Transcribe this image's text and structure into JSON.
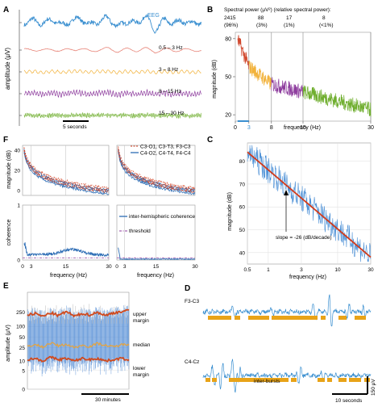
{
  "colors": {
    "eeg": "#3a8fd0",
    "delta": "#e8867a",
    "theta": "#f2b23a",
    "alpha": "#8e3d9e",
    "beta": "#6fae2e",
    "dark": "#333333",
    "red_fit": "#d23a1a",
    "threshold": "#8e3d9e",
    "margin": "#d04a1e",
    "median": "#e8a33a",
    "burst_bar": "#e8a318",
    "grey_line": "#aaaaaa"
  },
  "chart_data": [
    {
      "panel": "A",
      "type": "line",
      "ylabel": "amplitude (μV)",
      "series": [
        {
          "name": "EEG",
          "values": [
            0,
            6,
            -4,
            10,
            -8,
            4,
            12,
            -6,
            2,
            14,
            -12,
            5,
            -3,
            20,
            -25,
            8,
            -2,
            5,
            -3,
            2
          ]
        },
        {
          "name": "0.5 – 3 Hz",
          "values": [
            0,
            4,
            -3,
            5,
            -4,
            3,
            6,
            -5,
            2,
            7,
            -6,
            4,
            -2,
            8,
            -9,
            5,
            -3,
            3,
            -2,
            1
          ]
        },
        {
          "name": "3 – 8 Hz",
          "values": [
            0,
            2,
            -3,
            3,
            -2,
            2,
            3,
            -2,
            2,
            3,
            -3,
            2,
            -2,
            3,
            -3,
            2,
            -2,
            2,
            -2,
            1
          ]
        },
        {
          "name": "8 – 15 Hz",
          "values": [
            0,
            2,
            -2,
            3,
            -3,
            2,
            3,
            -3,
            2,
            3,
            -3,
            2,
            -2,
            3,
            -3,
            2,
            -2,
            2,
            -2,
            1
          ]
        },
        {
          "name": "15 – 30 Hz",
          "values": [
            0,
            1,
            -1,
            1,
            -1,
            1,
            1,
            -1,
            1,
            1,
            -1,
            1,
            -1,
            1,
            -1,
            1,
            -1,
            1,
            -1,
            1
          ]
        }
      ],
      "scale_bar_label": "5 seconds"
    },
    {
      "panel": "B",
      "type": "line",
      "title": "Spectral power (μV²) (relative spectral power):",
      "annotations": [
        {
          "power": "2415",
          "relative": "(96%)"
        },
        {
          "power": "88",
          "relative": "(3%)"
        },
        {
          "power": "17",
          "relative": "(1%)"
        },
        {
          "power": "8",
          "relative": "(<1%)"
        }
      ],
      "xlabel": "frequency (Hz)",
      "ylabel": "magnitude (dB)",
      "xticks": [
        0,
        3,
        8,
        15,
        30
      ],
      "yticks": [
        20,
        50,
        80
      ],
      "xlim": [
        0,
        30
      ],
      "ylim": [
        15,
        85
      ],
      "bands": [
        {
          "range": [
            0.5,
            3
          ],
          "level_start": 80,
          "level_end": 58
        },
        {
          "range": [
            3,
            8
          ],
          "level_start": 58,
          "level_end": 44
        },
        {
          "range": [
            8,
            15
          ],
          "level_start": 44,
          "level_end": 38
        },
        {
          "range": [
            15,
            30
          ],
          "level_start": 38,
          "level_end": 24
        }
      ]
    },
    {
      "panel": "C",
      "type": "line",
      "xlabel": "frequency (Hz)",
      "ylabel": "magnitude (dB)",
      "xscale": "log",
      "xticks": [
        "0.5",
        "1",
        "3",
        "10",
        "30"
      ],
      "yticks": [
        40,
        50,
        60,
        70,
        80
      ],
      "xlim": [
        0.5,
        30
      ],
      "ylim": [
        35,
        88
      ],
      "fit_line": {
        "x": [
          0.5,
          30
        ],
        "y": [
          84,
          38
        ]
      },
      "annotation": "slope = -26 (dB/decade)"
    },
    {
      "panel": "F",
      "type": "line",
      "top_ylabel": "magnitude (dB)",
      "bottom_ylabel": "coherence",
      "xlabel": "frequency (Hz)",
      "top_yticks": [
        0,
        20,
        40
      ],
      "bottom_yticks": [
        0,
        1
      ],
      "xticks": [
        0,
        3,
        15,
        30
      ],
      "top_legend": [
        "C3-O1, C3-T3, F3-C3",
        "C4-O2, C4-T4, F4-C4"
      ],
      "bottom_legend": [
        "inter-hemispheric coherence",
        "threshold"
      ],
      "threshold": 0.04
    },
    {
      "panel": "E",
      "type": "area",
      "ylabel": "amplitude (μV)",
      "yscale": "log",
      "yticks": [
        0,
        5,
        10,
        25,
        50,
        100,
        250
      ],
      "labels": [
        "upper margin",
        "median",
        "lower margin"
      ],
      "scale_bar_label": "30 minutes",
      "upper_margin": [
        210,
        230,
        190,
        240,
        200,
        260,
        190,
        230,
        210,
        250,
        200,
        240,
        260,
        280
      ],
      "median": [
        28,
        30,
        26,
        34,
        28,
        31,
        25,
        29,
        27,
        33,
        29,
        26,
        30,
        32
      ],
      "lower_margin": [
        11,
        12,
        10,
        13,
        11,
        12,
        10,
        12,
        11,
        12,
        10,
        11,
        12,
        11
      ]
    },
    {
      "panel": "D",
      "type": "line",
      "channels": [
        "F3-C3",
        "C4-Cz"
      ],
      "burst_label": "inter-bursts",
      "scale_bar_x": "10 seconds",
      "scale_bar_y": "150 μV"
    }
  ],
  "panel_letters": [
    "A",
    "B",
    "C",
    "D",
    "E",
    "F"
  ]
}
